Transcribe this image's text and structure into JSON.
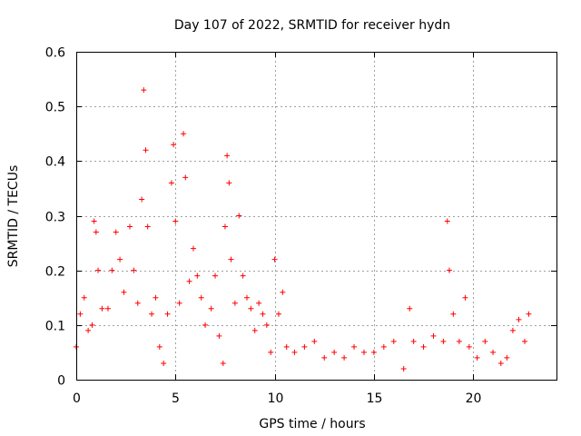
{
  "chart_data": {
    "type": "scatter",
    "title": "Day 107 of 2022, SRMTID for receiver hydn",
    "xlabel": "GPS time / hours",
    "ylabel": "SRMTID / TECUs",
    "xlim": [
      0,
      24.2
    ],
    "ylim": [
      0,
      0.6
    ],
    "xticks": [
      0,
      5,
      10,
      15,
      20
    ],
    "xtick_labels": [
      "0",
      "5",
      "10",
      "15",
      "20"
    ],
    "yticks": [
      0,
      0.1,
      0.2,
      0.3,
      0.4,
      0.5,
      0.6
    ],
    "ytick_labels": [
      "0",
      "0.1",
      "0.2",
      "0.3",
      "0.4",
      "0.5",
      "0.6"
    ],
    "grid": true,
    "marker": "+",
    "color": "#ff0000",
    "series": [
      {
        "name": "SRMTID",
        "description": "approximate trend points read from the figure (x in hours, y in TECU)",
        "points": [
          [
            0.0,
            0.06
          ],
          [
            0.2,
            0.12
          ],
          [
            0.4,
            0.15
          ],
          [
            0.6,
            0.09
          ],
          [
            0.8,
            0.1
          ],
          [
            0.9,
            0.29
          ],
          [
            1.0,
            0.27
          ],
          [
            1.1,
            0.2
          ],
          [
            1.3,
            0.13
          ],
          [
            1.6,
            0.13
          ],
          [
            1.8,
            0.2
          ],
          [
            2.0,
            0.27
          ],
          [
            2.2,
            0.22
          ],
          [
            2.4,
            0.16
          ],
          [
            2.7,
            0.28
          ],
          [
            2.9,
            0.2
          ],
          [
            3.1,
            0.14
          ],
          [
            3.3,
            0.33
          ],
          [
            3.4,
            0.53
          ],
          [
            3.5,
            0.42
          ],
          [
            3.6,
            0.28
          ],
          [
            3.8,
            0.12
          ],
          [
            4.0,
            0.15
          ],
          [
            4.2,
            0.06
          ],
          [
            4.4,
            0.03
          ],
          [
            4.6,
            0.12
          ],
          [
            4.8,
            0.36
          ],
          [
            4.9,
            0.43
          ],
          [
            5.0,
            0.29
          ],
          [
            5.2,
            0.14
          ],
          [
            5.4,
            0.45
          ],
          [
            5.5,
            0.37
          ],
          [
            5.7,
            0.18
          ],
          [
            5.9,
            0.24
          ],
          [
            6.1,
            0.19
          ],
          [
            6.3,
            0.15
          ],
          [
            6.5,
            0.1
          ],
          [
            6.8,
            0.13
          ],
          [
            7.0,
            0.19
          ],
          [
            7.2,
            0.08
          ],
          [
            7.4,
            0.03
          ],
          [
            7.5,
            0.28
          ],
          [
            7.6,
            0.41
          ],
          [
            7.7,
            0.36
          ],
          [
            7.8,
            0.22
          ],
          [
            8.0,
            0.14
          ],
          [
            8.2,
            0.3
          ],
          [
            8.4,
            0.19
          ],
          [
            8.6,
            0.15
          ],
          [
            8.8,
            0.13
          ],
          [
            9.0,
            0.09
          ],
          [
            9.2,
            0.14
          ],
          [
            9.4,
            0.12
          ],
          [
            9.6,
            0.1
          ],
          [
            9.8,
            0.05
          ],
          [
            10.0,
            0.22
          ],
          [
            10.2,
            0.12
          ],
          [
            10.4,
            0.16
          ],
          [
            10.6,
            0.06
          ],
          [
            11.0,
            0.05
          ],
          [
            11.5,
            0.06
          ],
          [
            12.0,
            0.07
          ],
          [
            12.5,
            0.04
          ],
          [
            13.0,
            0.05
          ],
          [
            13.5,
            0.04
          ],
          [
            14.0,
            0.06
          ],
          [
            14.5,
            0.05
          ],
          [
            15.0,
            0.05
          ],
          [
            15.5,
            0.06
          ],
          [
            16.0,
            0.07
          ],
          [
            16.5,
            0.02
          ],
          [
            16.8,
            0.13
          ],
          [
            17.0,
            0.07
          ],
          [
            17.5,
            0.06
          ],
          [
            18.0,
            0.08
          ],
          [
            18.5,
            0.07
          ],
          [
            18.7,
            0.29
          ],
          [
            18.8,
            0.2
          ],
          [
            19.0,
            0.12
          ],
          [
            19.3,
            0.07
          ],
          [
            19.6,
            0.15
          ],
          [
            19.8,
            0.06
          ],
          [
            20.2,
            0.04
          ],
          [
            20.6,
            0.07
          ],
          [
            21.0,
            0.05
          ],
          [
            21.4,
            0.03
          ],
          [
            21.7,
            0.04
          ],
          [
            22.0,
            0.09
          ],
          [
            22.3,
            0.11
          ],
          [
            22.6,
            0.07
          ],
          [
            22.8,
            0.12
          ]
        ]
      }
    ]
  }
}
